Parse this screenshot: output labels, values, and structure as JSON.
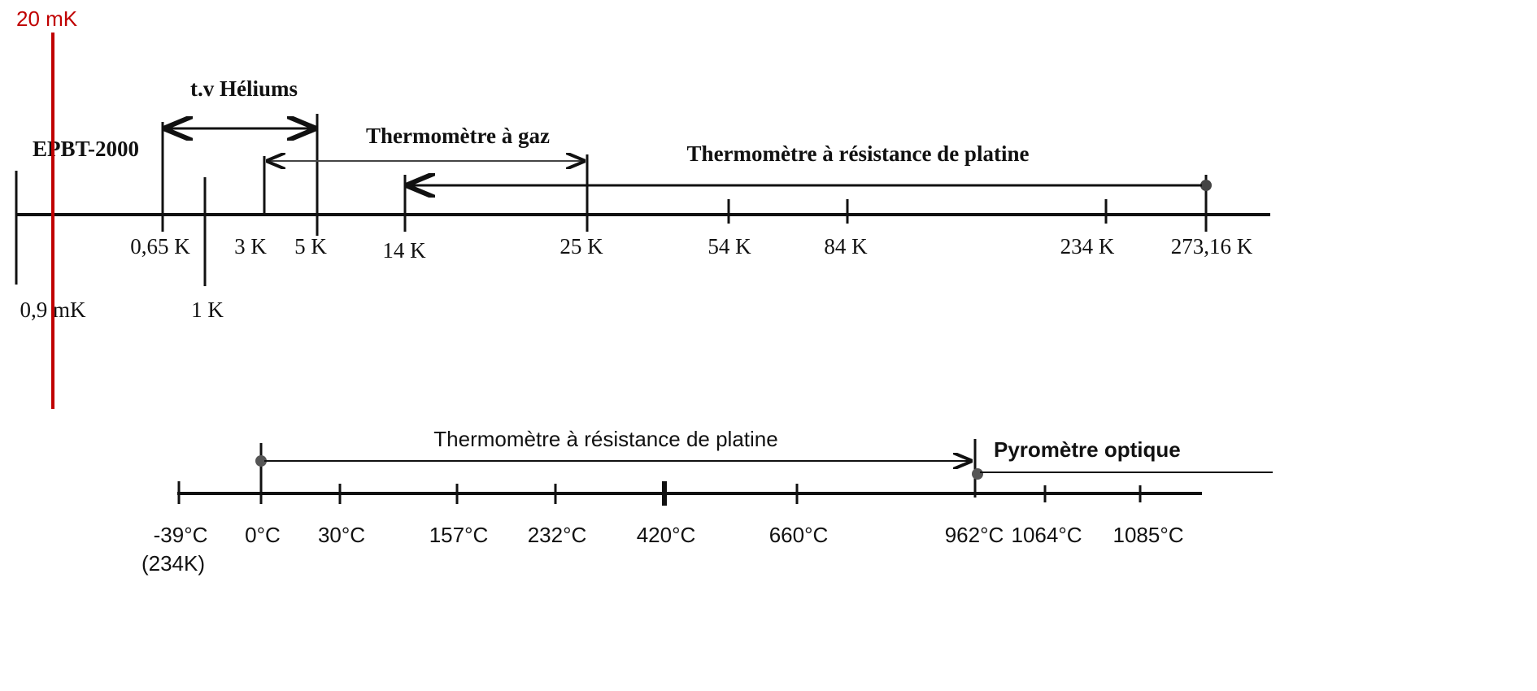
{
  "marker": {
    "label": "20 mK"
  },
  "kelvin_scale": {
    "ticks": [
      "0,9 mK",
      "0,65 K",
      "1 K",
      "3 K",
      "5 K",
      "14 K",
      "25 K",
      "54 K",
      "84 K",
      "234 K",
      "273,16 K"
    ],
    "ranges": [
      "EPBT-2000",
      "t.v Héliums",
      "Thermomètre à gaz",
      "Thermomètre à résistance de platine"
    ]
  },
  "celsius_scale": {
    "ticks": [
      "-39°C",
      "0°C",
      "30°C",
      "157°C",
      "232°C",
      "420°C",
      "660°C",
      "962°C",
      "1064°C",
      "1085°C"
    ],
    "note": "(234K)",
    "ranges": [
      "Thermomètre à résistance de platine",
      "Pyromètre optique"
    ]
  }
}
